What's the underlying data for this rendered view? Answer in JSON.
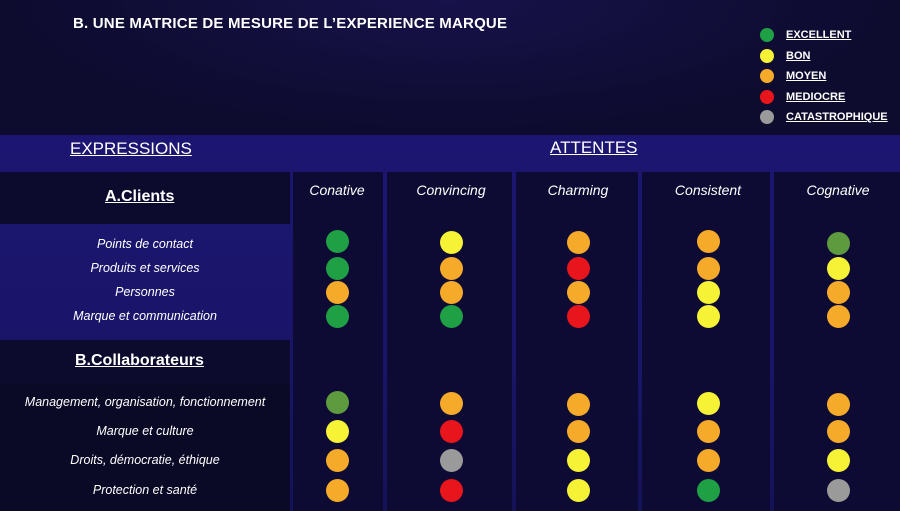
{
  "title": "B. UNE MATRICE DE MESURE DE L’EXPERIENCE MARQUE",
  "legend": [
    {
      "label": "EXCELLENT",
      "color": "#1fa045"
    },
    {
      "label": "BON",
      "color": "#f6f236"
    },
    {
      "label": "MOYEN",
      "color": "#f5aa2a"
    },
    {
      "label": "MEDIOCRE",
      "color": "#e8151d"
    },
    {
      "label": "CATASTROPHIQUE",
      "color": "#9a9a9a"
    }
  ],
  "headers": {
    "expressions": "EXPRESSIONS",
    "attentes": "ATTENTES"
  },
  "columns": [
    "Conative",
    "Convincing",
    "Charming",
    "Consistent",
    "Cognative"
  ],
  "groups": [
    {
      "name": "A.Clients",
      "rows": [
        {
          "label": "Points de contact",
          "values": [
            "EXCELLENT",
            "BON",
            "MOYEN",
            "MOYEN",
            "EXCELLENT_MUTED"
          ]
        },
        {
          "label": "Produits et services",
          "values": [
            "EXCELLENT",
            "MOYEN",
            "MEDIOCRE",
            "MOYEN",
            "BON"
          ]
        },
        {
          "label": "Personnes",
          "values": [
            "MOYEN",
            "MOYEN",
            "MOYEN",
            "BON",
            "MOYEN"
          ]
        },
        {
          "label": "Marque et communication",
          "values": [
            "EXCELLENT",
            "EXCELLENT",
            "MEDIOCRE",
            "BON",
            "MOYEN"
          ]
        }
      ]
    },
    {
      "name": "B.Collaborateurs",
      "rows": [
        {
          "label": "Management, organisation, fonctionnement",
          "values": [
            "EXCELLENT_MUTED",
            "MOYEN",
            "MOYEN",
            "BON",
            "MOYEN"
          ]
        },
        {
          "label": "Marque et culture",
          "values": [
            "BON",
            "MEDIOCRE",
            "MOYEN",
            "MOYEN",
            "MOYEN"
          ]
        },
        {
          "label": "Droits, démocratie, éthique",
          "values": [
            "MOYEN",
            "CATASTROPHIQUE",
            "BON",
            "MOYEN",
            "BON"
          ]
        },
        {
          "label": "Protection et santé",
          "values": [
            "MOYEN",
            "MEDIOCRE",
            "BON",
            "EXCELLENT",
            "CATASTROPHIQUE"
          ]
        }
      ]
    }
  ],
  "colors": {
    "EXCELLENT": "#1fa045",
    "EXCELLENT_MUTED": "#5e9a3e",
    "BON": "#f6f236",
    "MOYEN": "#f5aa2a",
    "MEDIOCRE": "#e8151d",
    "CATASTROPHIQUE": "#9a9a9a"
  }
}
